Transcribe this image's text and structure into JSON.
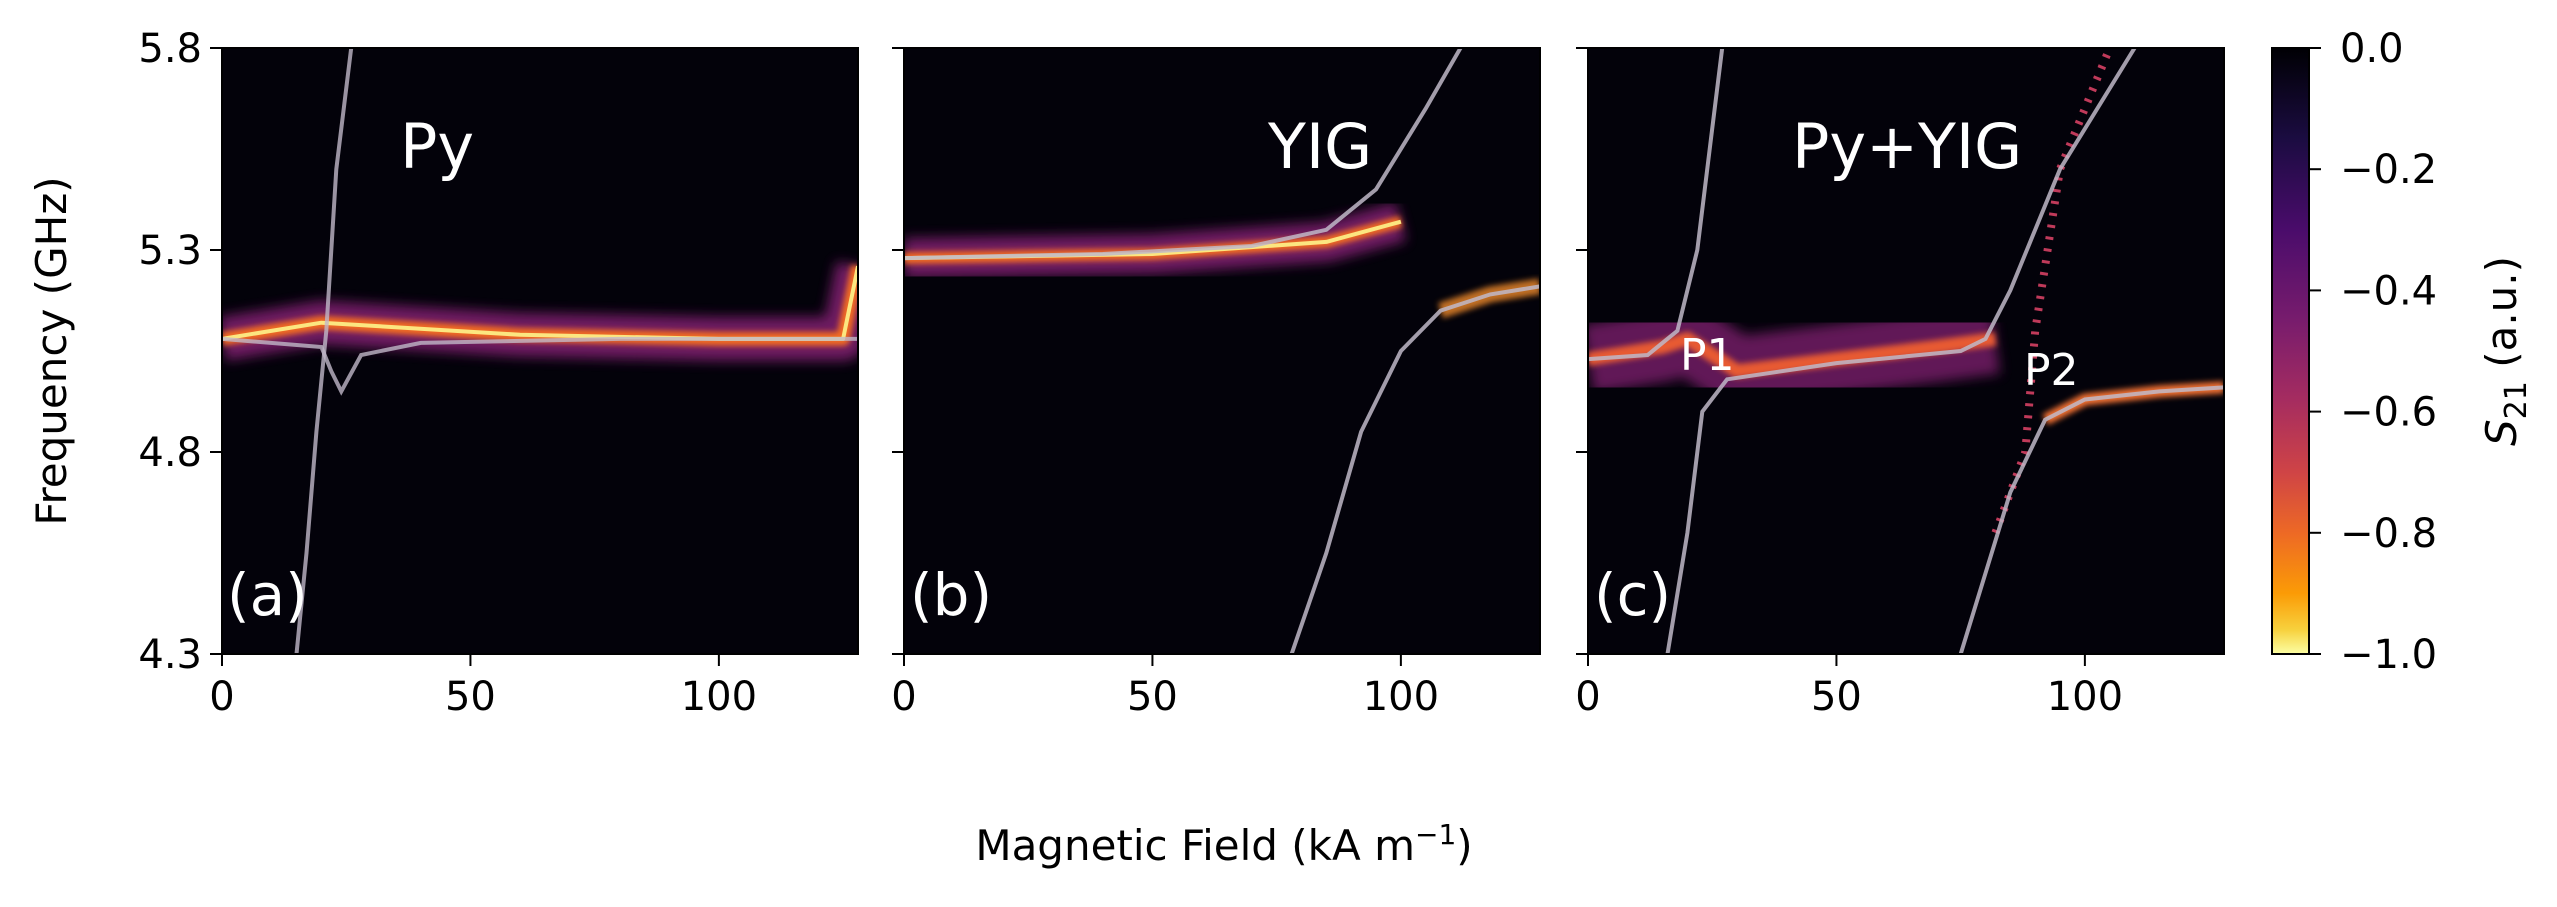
{
  "chart_data": [
    {
      "type": "heatmap",
      "panel_label": "(a)",
      "title": "Py",
      "xlim": [
        0,
        128
      ],
      "ylim": [
        4.3,
        5.8
      ],
      "xticks": [
        "0",
        "50",
        "100"
      ],
      "yticks": [
        "4.3",
        "4.8",
        "5.3",
        "5.8"
      ],
      "ylabel": "Frequency (GHz)",
      "fit_lower": [
        [
          0,
          5.08
        ],
        [
          20,
          5.06
        ],
        [
          22,
          5.0
        ],
        [
          24,
          4.95
        ],
        [
          28,
          5.04
        ],
        [
          40,
          5.07
        ],
        [
          80,
          5.08
        ],
        [
          128,
          5.08
        ]
      ],
      "fit_upper": [
        [
          15,
          4.3
        ],
        [
          17,
          4.55
        ],
        [
          19,
          4.85
        ],
        [
          21,
          5.1
        ],
        [
          23,
          5.5
        ],
        [
          26,
          5.8
        ]
      ],
      "intensity_ridge": [
        [
          0,
          5.08
        ],
        [
          20,
          5.12
        ],
        [
          60,
          5.09
        ],
        [
          100,
          5.08
        ],
        [
          125,
          5.08
        ],
        [
          128,
          5.26
        ]
      ],
      "annotations": []
    },
    {
      "type": "heatmap",
      "panel_label": "(b)",
      "title": "YIG",
      "xlim": [
        0,
        128
      ],
      "ylim": [
        4.3,
        5.8
      ],
      "xticks": [
        "0",
        "50",
        "100"
      ],
      "yticks": [
        "4.3",
        "4.8",
        "5.3",
        "5.8"
      ],
      "fit_upper": [
        [
          0,
          5.28
        ],
        [
          40,
          5.29
        ],
        [
          70,
          5.31
        ],
        [
          85,
          5.35
        ],
        [
          95,
          5.45
        ],
        [
          105,
          5.65
        ],
        [
          112,
          5.8
        ]
      ],
      "fit_lower": [
        [
          78,
          4.3
        ],
        [
          85,
          4.55
        ],
        [
          92,
          4.85
        ],
        [
          100,
          5.05
        ],
        [
          108,
          5.15
        ],
        [
          118,
          5.19
        ],
        [
          128,
          5.21
        ]
      ],
      "intensity_ridge": [
        [
          0,
          5.28
        ],
        [
          50,
          5.29
        ],
        [
          85,
          5.32
        ],
        [
          100,
          5.37
        ]
      ],
      "annotations": []
    },
    {
      "type": "heatmap",
      "panel_label": "(c)",
      "title": "Py+YIG",
      "xlim": [
        0,
        128
      ],
      "ylim": [
        4.3,
        5.8
      ],
      "xticks": [
        "0",
        "50",
        "100"
      ],
      "yticks": [
        "4.3",
        "4.8",
        "5.3",
        "5.8"
      ],
      "fit_lower_left": [
        [
          0,
          5.03
        ],
        [
          12,
          5.04
        ],
        [
          18,
          5.1
        ],
        [
          22,
          5.3
        ],
        [
          25,
          5.6
        ],
        [
          27,
          5.8
        ]
      ],
      "fit_middle": [
        [
          16,
          4.3
        ],
        [
          20,
          4.6
        ],
        [
          23,
          4.9
        ],
        [
          28,
          4.98
        ],
        [
          50,
          5.02
        ],
        [
          75,
          5.05
        ],
        [
          80,
          5.08
        ],
        [
          85,
          5.2
        ],
        [
          95,
          5.5
        ],
        [
          110,
          5.8
        ]
      ],
      "fit_lower_right": [
        [
          75,
          4.3
        ],
        [
          80,
          4.5
        ],
        [
          85,
          4.7
        ],
        [
          92,
          4.88
        ],
        [
          100,
          4.93
        ],
        [
          115,
          4.95
        ],
        [
          128,
          4.96
        ]
      ],
      "annotations": [
        "P1",
        "P2"
      ]
    }
  ],
  "xlabel_html": "Magnetic Field (kA m",
  "xlabel_sup": "−1",
  "xlabel_close": ")",
  "colorbar": {
    "label_main": "S",
    "label_sub": "21",
    "label_rest": " (a.u.)",
    "ticks": [
      "0.0",
      "−0.2",
      "−0.4",
      "−0.6",
      "−0.8",
      "−1.0"
    ],
    "range": [
      -1.0,
      0.0
    ]
  }
}
